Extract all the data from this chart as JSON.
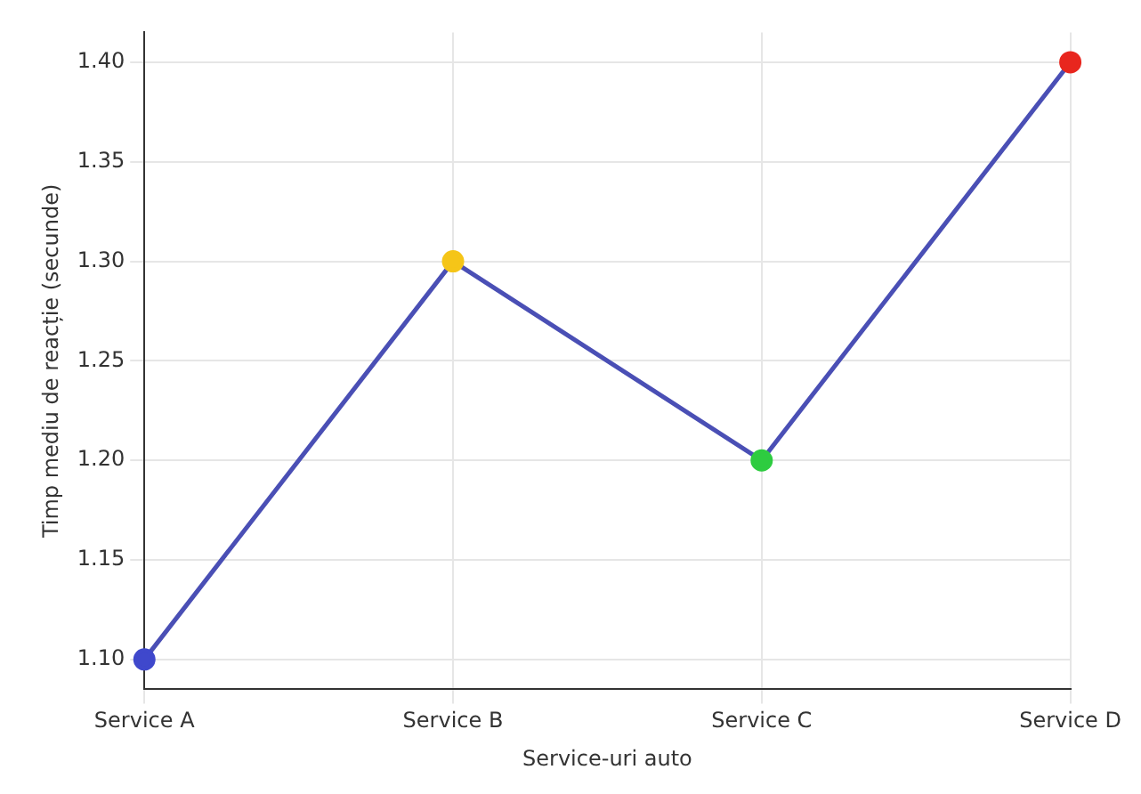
{
  "chart_data": {
    "type": "line",
    "xlabel": "Service-uri auto",
    "ylabel": "Timp mediu de reacție (secunde)",
    "categories": [
      "Service A",
      "Service B",
      "Service C",
      "Service D"
    ],
    "series": [
      {
        "color": "#4a4fb5",
        "colors": [
          "#3f48cc",
          "#f5c518",
          "#2ecc40",
          "#e8261e"
        ],
        "values": [
          1.1,
          1.3,
          1.2,
          1.4
        ]
      }
    ],
    "ylim": [
      1.085,
      1.415
    ],
    "yticks": [
      {
        "value": 1.1,
        "label": "1.10"
      },
      1.15,
      {
        "value": 1.2,
        "label": "1.20"
      },
      1.25,
      {
        "value": 1.3,
        "label": "1.30"
      },
      1.35,
      {
        "value": 1.4,
        "label": "1.40"
      }
    ],
    "grid": true,
    "marker": "circle",
    "line_style": "solid"
  }
}
